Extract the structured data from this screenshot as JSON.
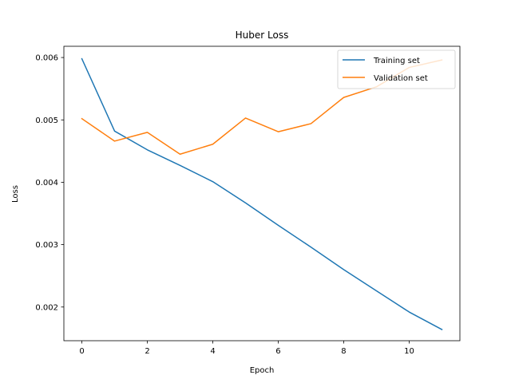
{
  "chart_data": {
    "type": "line",
    "title": "Huber Loss",
    "xlabel": "Epoch",
    "ylabel": "Loss",
    "xlim": [
      -0.55,
      11.55
    ],
    "ylim": [
      0.00146,
      0.00618
    ],
    "xticks": [
      0,
      2,
      4,
      6,
      8,
      10
    ],
    "xtick_labels": [
      "0",
      "2",
      "4",
      "6",
      "8",
      "10"
    ],
    "yticks": [
      0.002,
      0.003,
      0.004,
      0.005,
      0.006
    ],
    "ytick_labels": [
      "0.002",
      "0.003",
      "0.004",
      "0.005",
      "0.006"
    ],
    "grid": false,
    "legend_position": "top-right",
    "x": [
      0,
      1,
      2,
      3,
      4,
      5,
      6,
      7,
      8,
      9,
      10,
      11
    ],
    "series": [
      {
        "name": "Training set",
        "color": "#1f77b4",
        "values": [
          0.00598,
          0.00482,
          0.00452,
          0.00427,
          0.00401,
          0.00367,
          0.00331,
          0.00296,
          0.0026,
          0.00226,
          0.00192,
          0.00164
        ]
      },
      {
        "name": "Validation set",
        "color": "#ff7f0e",
        "values": [
          0.00502,
          0.00466,
          0.0048,
          0.00445,
          0.00461,
          0.00503,
          0.00481,
          0.00494,
          0.00536,
          0.00553,
          0.00584,
          0.00596
        ]
      }
    ]
  }
}
